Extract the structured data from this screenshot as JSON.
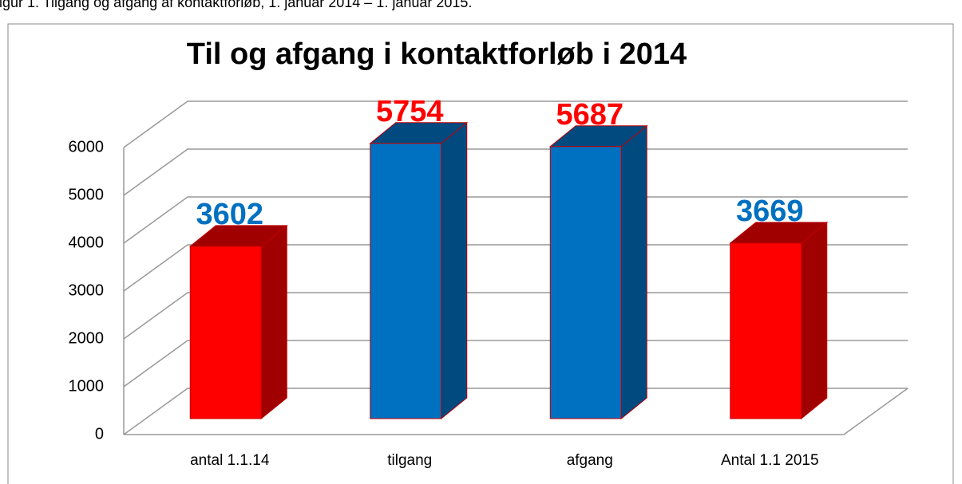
{
  "caption": "Figur 1. Tilgang og afgang af kontaktforløb, 1. januar 2014 – 1. januar 2015.",
  "chart_data": {
    "type": "bar",
    "title": "Til og afgang i kontaktforløb i 2014",
    "categories": [
      "antal 1.1.14",
      "tilgang",
      "afgang",
      "Antal 1.1 2015"
    ],
    "values": [
      3602,
      5754,
      5687,
      3669
    ],
    "colors": [
      "#ff0000",
      "#0070c0",
      "#0070c0",
      "#ff0000"
    ],
    "side_colors": [
      "#a00000",
      "#004a80",
      "#004a80",
      "#a00000"
    ],
    "label_colors": [
      "#0070c0",
      "#ff0000",
      "#ff0000",
      "#0070c0"
    ],
    "ylim": [
      0,
      6000
    ],
    "yticks": [
      0,
      1000,
      2000,
      3000,
      4000,
      5000,
      6000
    ],
    "grid": true
  }
}
